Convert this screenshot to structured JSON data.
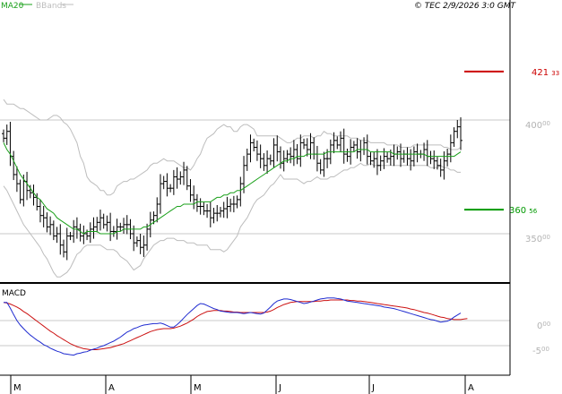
{
  "header": {
    "legend_ma": "MA20",
    "legend_bb": "BBands",
    "timestamp": "© TEC 2/9/2026 3:0 GMT"
  },
  "colors": {
    "ma": "#1aa01a",
    "bbands": "#bdbdbd",
    "bars": "#000000",
    "resistance": "#cc0000",
    "support": "#009900",
    "macd_line": "#1f2bd0",
    "signal_line": "#cc1111",
    "grid": "#c8c8c8",
    "frame": "#000000",
    "tick_text": "#b3b3b3"
  },
  "chart_data": [
    {
      "type": "ohlc",
      "name": "price",
      "y_ticks": [
        {
          "value": 400,
          "label": "400",
          "sup": "00"
        },
        {
          "value": 350,
          "label": "350",
          "sup": "00"
        }
      ],
      "ylim": [
        330,
        450
      ],
      "x_ticks": [
        "M",
        "A",
        "M",
        "J",
        "J",
        "A"
      ],
      "levels": [
        {
          "name": "resistance",
          "value": 421.33,
          "label": "421",
          "sup": "33"
        },
        {
          "name": "support",
          "value": 360.56,
          "label": "360",
          "sup": "56"
        }
      ],
      "close": [
        392,
        395,
        384,
        376,
        372,
        365,
        373,
        369,
        368,
        366,
        362,
        358,
        357,
        353,
        354,
        349,
        350,
        345,
        342,
        349,
        349,
        353,
        352,
        349,
        350,
        349,
        352,
        353,
        355,
        357,
        354,
        355,
        351,
        351,
        353,
        353,
        354,
        354,
        350,
        346,
        347,
        344,
        345,
        352,
        356,
        358,
        363,
        372,
        373,
        370,
        370,
        375,
        374,
        375,
        378,
        371,
        367,
        365,
        362,
        362,
        360,
        360,
        357,
        359,
        359,
        360,
        361,
        362,
        363,
        363,
        365,
        372,
        380,
        385,
        390,
        388,
        385,
        383,
        380,
        383,
        382,
        389,
        386,
        381,
        383,
        385,
        384,
        387,
        383,
        390,
        389,
        387,
        390,
        385,
        381,
        378,
        383,
        383,
        389,
        391,
        389,
        392,
        385,
        384,
        388,
        389,
        386,
        387,
        390,
        384,
        382,
        383,
        380,
        382,
        384,
        383,
        384,
        385,
        386,
        383,
        385,
        383,
        382,
        386,
        385,
        385,
        387,
        384,
        383,
        382,
        380,
        378,
        382,
        385,
        390,
        395,
        397,
        391
      ],
      "ma20": [
        390,
        387,
        385,
        382,
        379,
        376,
        374,
        372,
        370,
        368,
        366,
        365,
        363,
        361,
        360,
        359,
        357,
        356,
        355,
        354,
        353,
        352,
        352,
        351,
        350,
        351,
        351,
        351,
        351,
        350,
        350,
        350,
        350,
        350,
        351,
        351,
        352,
        352,
        352,
        352,
        352,
        352,
        353,
        353,
        354,
        355,
        356,
        357,
        358,
        359,
        360,
        361,
        362,
        362,
        363,
        363,
        363,
        363,
        364,
        364,
        364,
        364,
        364,
        365,
        366,
        366,
        367,
        367,
        368,
        368,
        369,
        369,
        370,
        371,
        372,
        373,
        374,
        375,
        376,
        377,
        378,
        379,
        380,
        381,
        382,
        382,
        383,
        383,
        384,
        384,
        384,
        385,
        385,
        385,
        385,
        385,
        385,
        386,
        386,
        386,
        386,
        386,
        386,
        386,
        386,
        386,
        387,
        387,
        387,
        387,
        386,
        386,
        386,
        386,
        386,
        386,
        386,
        385,
        385,
        385,
        385,
        385,
        385,
        385,
        385,
        385,
        385,
        384,
        384,
        384,
        384,
        384,
        384,
        384,
        384,
        384,
        385,
        386
      ],
      "bb_upper": [
        409,
        407,
        407,
        407,
        406,
        405,
        405,
        404,
        403,
        402,
        401,
        400,
        400,
        400,
        401,
        402,
        402,
        401,
        399,
        398,
        396,
        393,
        390,
        384,
        381,
        375,
        373,
        372,
        371,
        369,
        369,
        367,
        367,
        368,
        371,
        372,
        373,
        373,
        374,
        374,
        375,
        376,
        377,
        378,
        380,
        381,
        381,
        382,
        383,
        382,
        382,
        382,
        381,
        380,
        379,
        379,
        378,
        380,
        383,
        385,
        389,
        392,
        393,
        394,
        396,
        397,
        398,
        397,
        397,
        395,
        395,
        397,
        398,
        398,
        397,
        396,
        393,
        393,
        393,
        393,
        393,
        393,
        393,
        392,
        391,
        390,
        390,
        391,
        392,
        392,
        393,
        393,
        393,
        392,
        393,
        393,
        395,
        394,
        394,
        393,
        393,
        393,
        393,
        393,
        392,
        392,
        392,
        391,
        391,
        391,
        390,
        390,
        390,
        390,
        390,
        389,
        389,
        389,
        389,
        388,
        388,
        388,
        388,
        389,
        389,
        389,
        389,
        389,
        389,
        389,
        389,
        389,
        388,
        388,
        387,
        387,
        387,
        388
      ],
      "bb_lower": [
        371,
        369,
        366,
        363,
        360,
        357,
        354,
        352,
        350,
        348,
        346,
        344,
        341,
        339,
        336,
        333,
        331,
        331,
        332,
        333,
        335,
        338,
        341,
        342,
        344,
        345,
        345,
        345,
        345,
        345,
        344,
        343,
        343,
        343,
        342,
        340,
        339,
        338,
        336,
        334,
        335,
        336,
        339,
        341,
        343,
        345,
        346,
        347,
        347,
        348,
        348,
        348,
        347,
        347,
        347,
        346,
        346,
        346,
        345,
        345,
        345,
        345,
        343,
        343,
        343,
        343,
        342,
        343,
        345,
        347,
        349,
        353,
        355,
        357,
        360,
        363,
        365,
        366,
        367,
        369,
        371,
        372,
        374,
        376,
        374,
        374,
        374,
        374,
        374,
        373,
        372,
        373,
        373,
        374,
        375,
        374,
        374,
        374,
        375,
        375,
        376,
        377,
        378,
        378,
        379,
        379,
        380,
        381,
        380,
        380,
        381,
        380,
        380,
        380,
        380,
        380,
        380,
        380,
        380,
        380,
        380,
        380,
        380,
        380,
        380,
        380,
        380,
        380,
        379,
        379,
        379,
        380,
        379,
        379,
        378,
        378,
        377,
        377
      ]
    },
    {
      "type": "line",
      "name": "MACD",
      "title": "MACD",
      "y_ticks": [
        {
          "value": 0,
          "label": "0",
          "sup": "00"
        },
        {
          "value": -5,
          "label": "-5",
          "sup": "00"
        }
      ],
      "ylim": [
        -10,
        8
      ],
      "series": [
        {
          "name": "macd",
          "values": [
            3.6,
            3.6,
            2.5,
            1.2,
            0.0,
            -0.9,
            -1.6,
            -2.3,
            -2.9,
            -3.4,
            -3.9,
            -4.3,
            -4.8,
            -5.1,
            -5.5,
            -5.8,
            -6.1,
            -6.3,
            -6.6,
            -6.7,
            -6.8,
            -6.9,
            -6.6,
            -6.5,
            -6.3,
            -6.2,
            -5.9,
            -5.7,
            -5.5,
            -5.2,
            -5.0,
            -4.7,
            -4.4,
            -4.1,
            -3.7,
            -3.3,
            -2.8,
            -2.3,
            -2.0,
            -1.6,
            -1.4,
            -1.1,
            -0.9,
            -0.8,
            -0.7,
            -0.6,
            -0.6,
            -0.5,
            -0.7,
            -1.0,
            -1.3,
            -1.3,
            -0.8,
            -0.2,
            0.5,
            1.2,
            1.8,
            2.4,
            3.0,
            3.4,
            3.3,
            3.0,
            2.7,
            2.4,
            2.2,
            1.9,
            1.8,
            1.7,
            1.6,
            1.6,
            1.6,
            1.5,
            1.4,
            1.5,
            1.6,
            1.5,
            1.4,
            1.3,
            1.5,
            2.1,
            2.7,
            3.4,
            3.9,
            4.1,
            4.3,
            4.3,
            4.2,
            4.0,
            3.8,
            3.6,
            3.4,
            3.5,
            3.7,
            3.9,
            4.1,
            4.3,
            4.4,
            4.5,
            4.5,
            4.5,
            4.4,
            4.3,
            4.1,
            3.9,
            3.8,
            3.7,
            3.6,
            3.5,
            3.4,
            3.3,
            3.2,
            3.1,
            3.0,
            2.9,
            2.7,
            2.6,
            2.5,
            2.4,
            2.2,
            2.0,
            1.8,
            1.6,
            1.4,
            1.2,
            1.0,
            0.8,
            0.6,
            0.4,
            0.2,
            0.1,
            -0.1,
            -0.3,
            -0.2,
            -0.1,
            0.2,
            0.7,
            1.1,
            1.5
          ]
        },
        {
          "name": "signal",
          "values": [
            3.6,
            3.5,
            3.3,
            3.0,
            2.7,
            2.3,
            1.8,
            1.4,
            0.9,
            0.4,
            -0.1,
            -0.6,
            -1.1,
            -1.6,
            -2.1,
            -2.5,
            -3.0,
            -3.4,
            -3.8,
            -4.2,
            -4.6,
            -4.9,
            -5.2,
            -5.4,
            -5.6,
            -5.7,
            -5.8,
            -5.8,
            -5.8,
            -5.7,
            -5.6,
            -5.5,
            -5.4,
            -5.2,
            -5.0,
            -4.8,
            -4.6,
            -4.3,
            -4.0,
            -3.7,
            -3.4,
            -3.1,
            -2.8,
            -2.5,
            -2.2,
            -2.0,
            -1.8,
            -1.7,
            -1.6,
            -1.6,
            -1.6,
            -1.5,
            -1.3,
            -1.1,
            -0.8,
            -0.5,
            -0.1,
            0.3,
            0.8,
            1.2,
            1.5,
            1.8,
            1.9,
            2.0,
            2.0,
            2.0,
            1.9,
            1.9,
            1.8,
            1.7,
            1.7,
            1.6,
            1.6,
            1.6,
            1.6,
            1.6,
            1.6,
            1.6,
            1.6,
            1.7,
            1.9,
            2.2,
            2.6,
            2.9,
            3.2,
            3.4,
            3.6,
            3.7,
            3.8,
            3.8,
            3.8,
            3.8,
            3.8,
            3.8,
            3.9,
            3.9,
            4.0,
            4.0,
            4.1,
            4.1,
            4.1,
            4.1,
            4.1,
            4.1,
            4.0,
            4.0,
            3.9,
            3.9,
            3.8,
            3.7,
            3.6,
            3.5,
            3.4,
            3.3,
            3.2,
            3.1,
            3.0,
            2.9,
            2.8,
            2.7,
            2.6,
            2.5,
            2.3,
            2.2,
            2.0,
            1.8,
            1.6,
            1.5,
            1.3,
            1.1,
            0.9,
            0.7,
            0.6,
            0.4,
            0.3,
            0.2,
            0.2,
            0.2,
            0.3,
            0.4
          ]
        }
      ]
    }
  ]
}
